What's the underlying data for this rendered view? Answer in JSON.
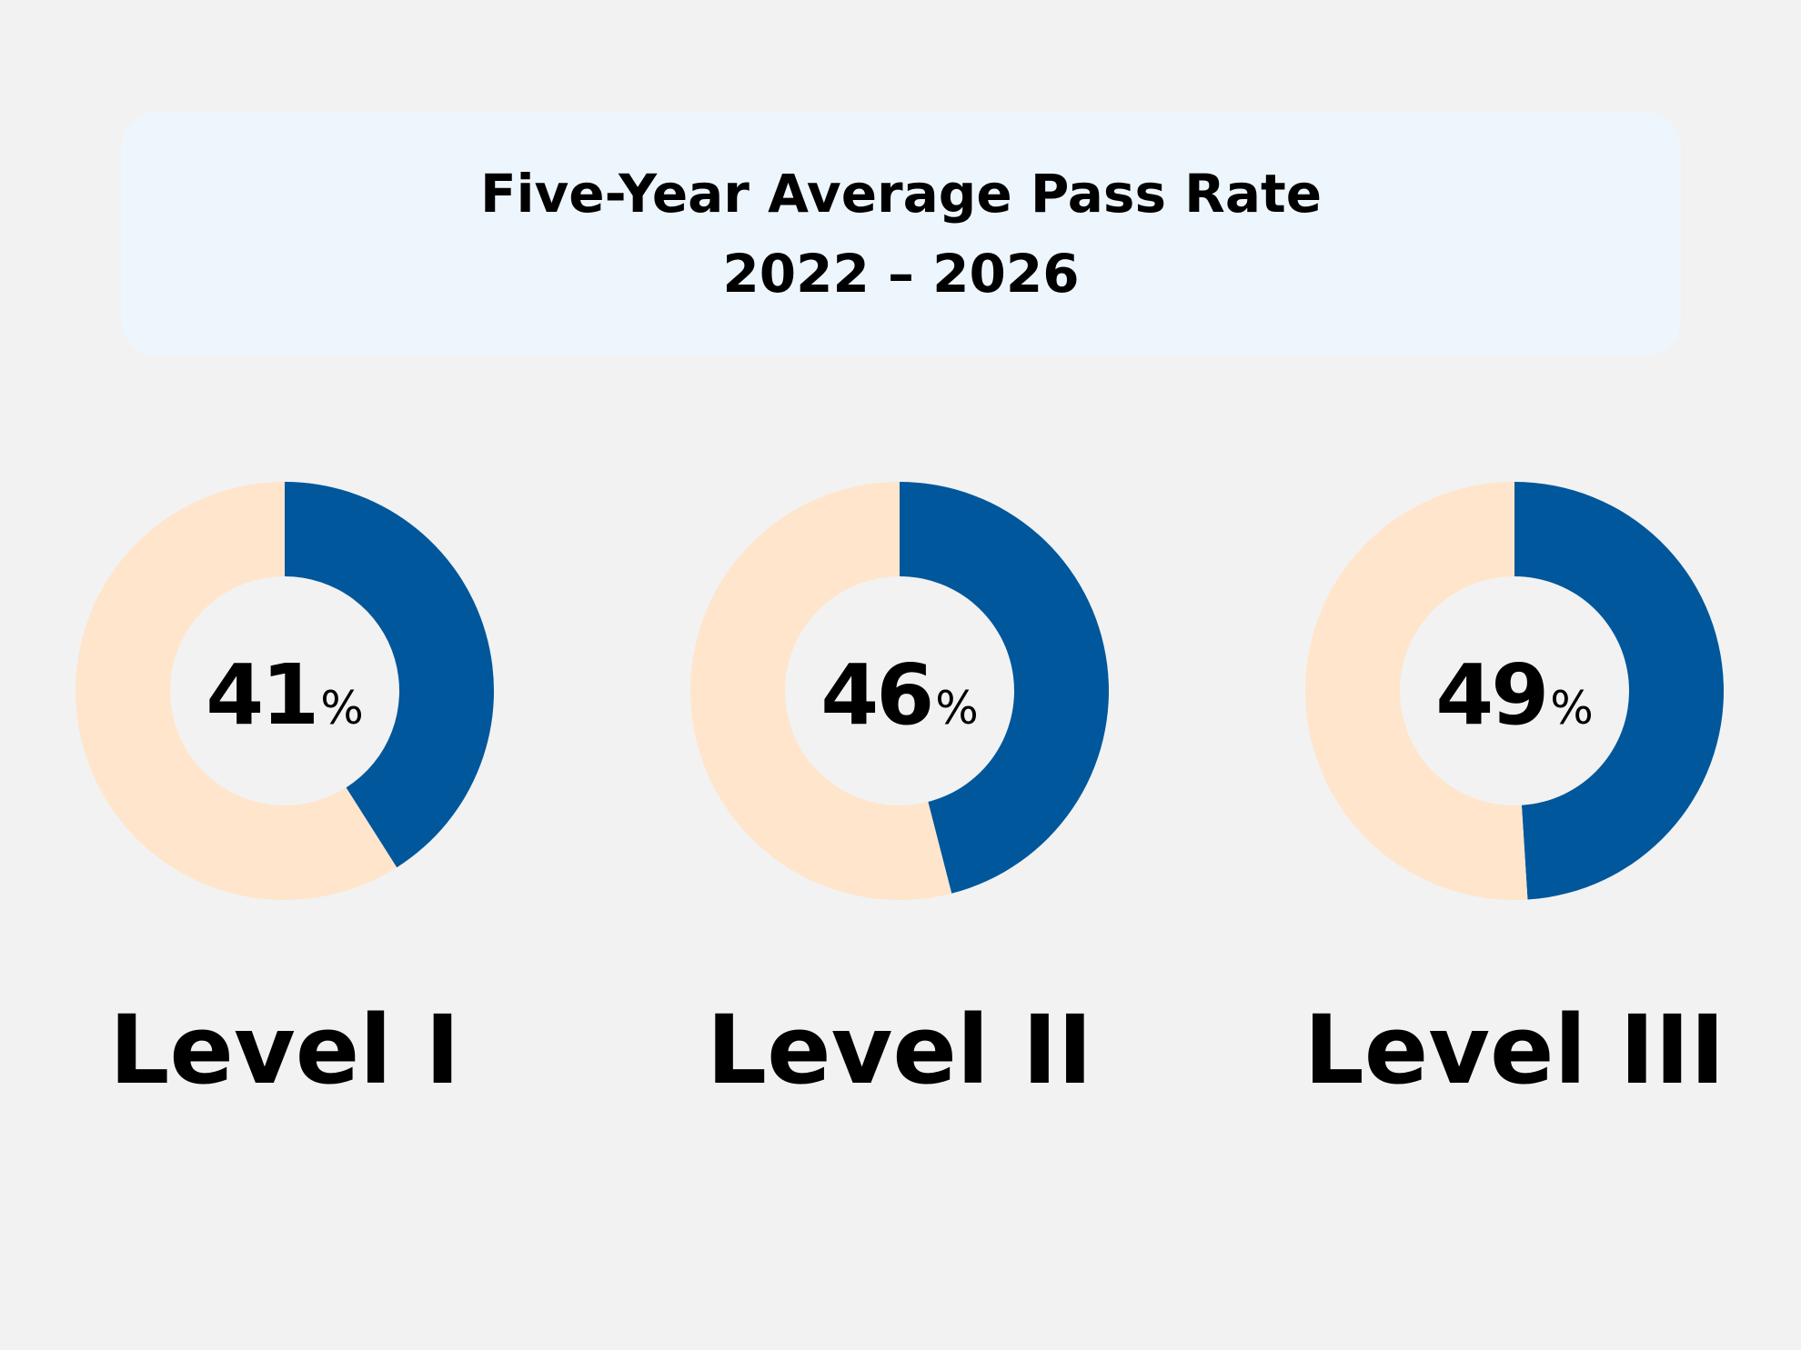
{
  "header": {
    "title_line1": "Five-Year Average Pass Rate",
    "title_line2": "2022 – 2026"
  },
  "colors": {
    "background": "#f2f2f2",
    "title_box": "#eef6fd",
    "pass": "#01579b",
    "remainder": "#ffe5cc",
    "text": "#000000"
  },
  "chart_data": [
    {
      "type": "pie",
      "label": "Level I",
      "value": 41,
      "value_text": "41",
      "unit": "%",
      "slices": [
        {
          "value": 41,
          "color": "#01579b"
        },
        {
          "value": 59,
          "color": "#ffe5cc"
        }
      ]
    },
    {
      "type": "pie",
      "label": "Level II",
      "value": 46,
      "value_text": "46",
      "unit": "%",
      "slices": [
        {
          "value": 46,
          "color": "#01579b"
        },
        {
          "value": 54,
          "color": "#ffe5cc"
        }
      ]
    },
    {
      "type": "pie",
      "label": "Level III",
      "value": 49,
      "value_text": "49",
      "unit": "%",
      "slices": [
        {
          "value": 49,
          "color": "#01579b"
        },
        {
          "value": 51,
          "color": "#ffe5cc"
        }
      ]
    }
  ]
}
